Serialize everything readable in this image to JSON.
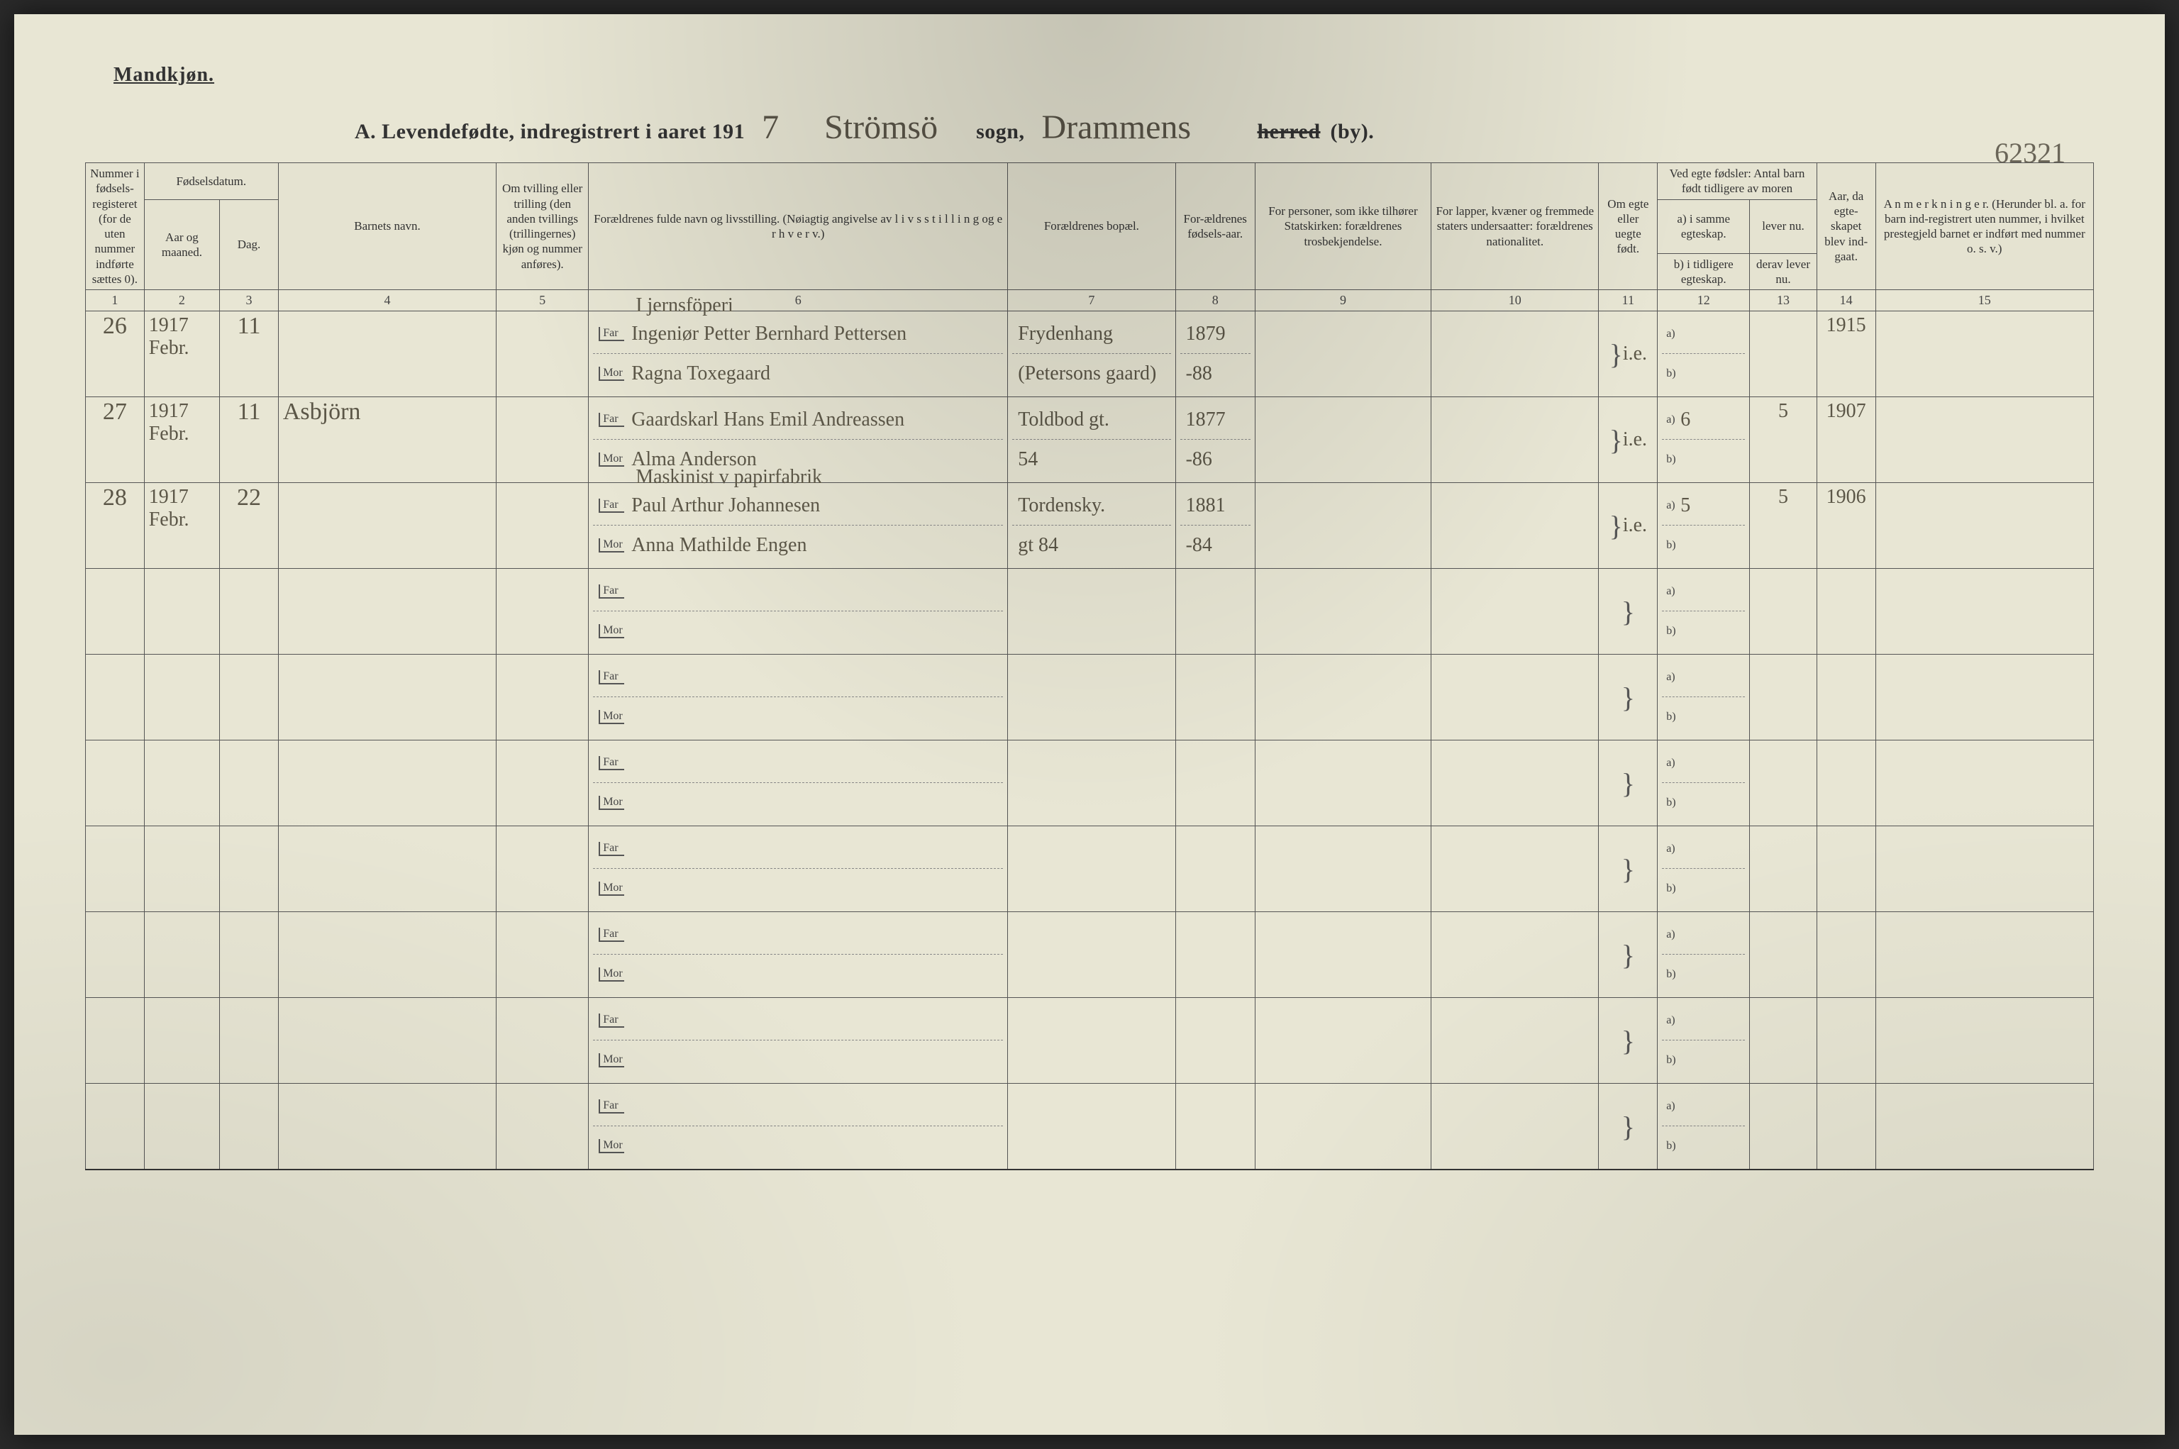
{
  "page": {
    "corner_title": "Mandkjøn.",
    "heading_prefix": "A.  Levendefødte, indregistrert i aaret 191",
    "heading_year_suffix": "7",
    "heading_parish_script": "Strömsö",
    "heading_sogn": "sogn,",
    "heading_district_script": "Drammens",
    "heading_herred_struck": "herred",
    "heading_by": "(by).",
    "top_right_script": "62321"
  },
  "headers": {
    "c1": "Nummer i fødsels-registeret (for de uten nummer indførte sættes 0).",
    "c_fodsel": "Fødselsdatum.",
    "c2": "Aar og maaned.",
    "c3": "Dag.",
    "c4": "Barnets navn.",
    "c5": "Om tvilling eller trilling (den anden tvillings (trillingernes) kjøn og nummer anføres).",
    "c6": "Forældrenes fulde navn og livsstilling. (Nøiagtig angivelse av l i v s s t i l l i n g og e r h v e r v.)",
    "c7": "Forældrenes bopæl.",
    "c8": "For-ældrenes fødsels-aar.",
    "c9": "For personer, som ikke tilhører Statskirken: forældrenes trosbekjendelse.",
    "c10": "For lapper, kvæner og fremmede staters undersaatter: forældrenes nationalitet.",
    "c11": "Om egte eller uegte født.",
    "c12_top": "Ved egte fødsler: Antal barn født tidligere av moren",
    "c12a": "a) i samme egteskap.",
    "c12b": "b) i tidligere egteskap.",
    "c13_top": "derav lever nu.",
    "c13a": "lever nu.",
    "c13b": "derav lever nu.",
    "c14": "Aar, da egte-skapet blev ind-gaat.",
    "c15": "A n m e r k n i n g e r. (Herunder bl. a. for barn ind-registrert uten nummer, i hvilket prestegjeld barnet er indført med nummer o. s. v.)"
  },
  "colnums": [
    "1",
    "2",
    "3",
    "4",
    "5",
    "6",
    "7",
    "8",
    "9",
    "10",
    "11",
    "12",
    "13",
    "14",
    "15"
  ],
  "parent_labels": {
    "far": "Far",
    "mor": "Mor"
  },
  "col12_labels": {
    "a": "a)",
    "b": "b)"
  },
  "rows": [
    {
      "num": "26",
      "year": "1917",
      "month": "Febr.",
      "day": "11",
      "child": "",
      "far_occ": "I jernsföperi",
      "far_name": "Ingeniør Petter Bernhard Pettersen",
      "mor_name": "Ragna Toxegaard",
      "far_bopel": "Frydenhang",
      "mor_bopel": "(Petersons gaard)",
      "far_year": "1879",
      "mor_year": "-88",
      "egte": "i.e.",
      "c12a": "",
      "c12b": "",
      "c13": "",
      "c14": "1915"
    },
    {
      "num": "27",
      "year": "1917",
      "month": "Febr.",
      "day": "11",
      "child": "Asbjörn",
      "far_occ": "",
      "far_name": "Gaardskarl Hans Emil Andreassen",
      "mor_name": "Alma Anderson",
      "far_bopel": "Toldbod gt.",
      "mor_bopel": "54",
      "far_year": "1877",
      "mor_year": "-86",
      "egte": "i.e.",
      "c12a": "6",
      "c12b": "",
      "c13": "5",
      "c14": "1907"
    },
    {
      "num": "28",
      "year": "1917",
      "month": "Febr.",
      "day": "22",
      "child": "",
      "far_occ": "Maskinist v papirfabrik",
      "far_name": "Paul Arthur Johannesen",
      "mor_name": "Anna Mathilde Engen",
      "far_bopel": "Tordensky.",
      "mor_bopel": "gt 84",
      "far_year": "1881",
      "mor_year": "-84",
      "egte": "i.e.",
      "c12a": "5",
      "c12b": "",
      "c13": "5",
      "c14": "1906"
    }
  ],
  "blank_rows": 7,
  "colors": {
    "paper": "#e8e6d4",
    "ink_print": "#333333",
    "ink_script": "#5b5647",
    "rule": "#555555"
  }
}
